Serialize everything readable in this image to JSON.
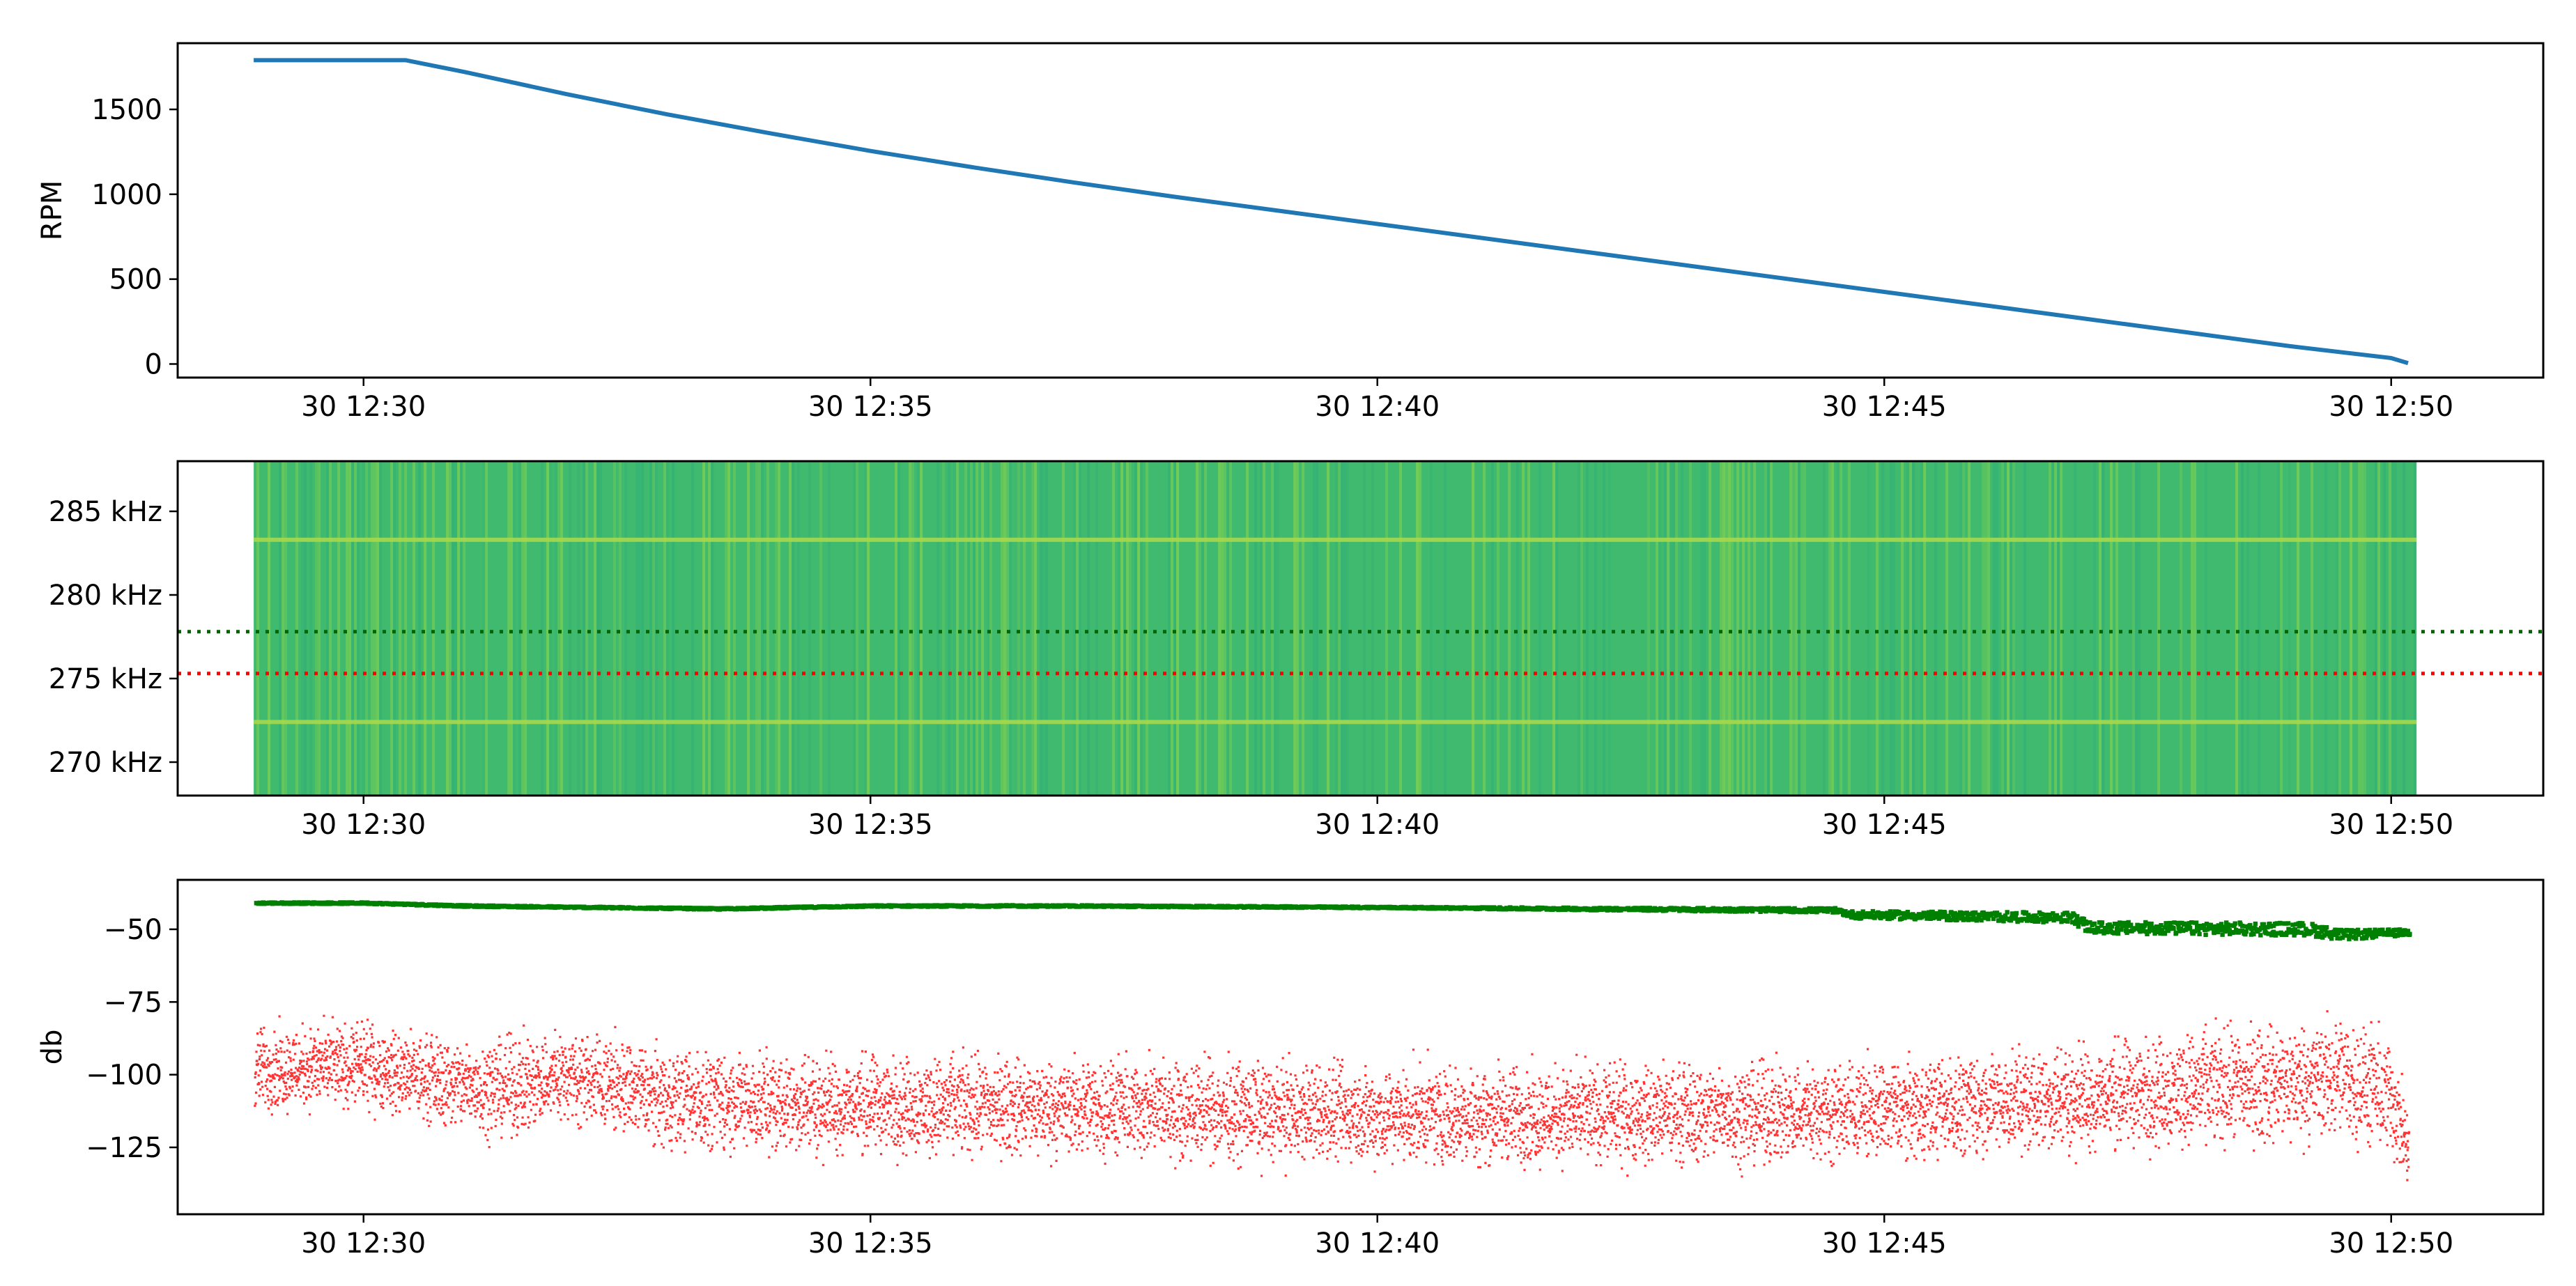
{
  "chart_data": [
    {
      "type": "line",
      "ylabel": "RPM",
      "xlim": [
        "12:28:10",
        "12:51:30"
      ],
      "ylim": [
        -80,
        1890
      ],
      "x_ticks": [
        "30 12:30",
        "30 12:35",
        "30 12:40",
        "30 12:45",
        "30 12:50"
      ],
      "y_ticks": [
        "0",
        "500",
        "1000",
        "1500"
      ],
      "grid": false,
      "series": [
        {
          "color": "#1f77b4",
          "x": [
            "12:28:55",
            "12:29:30",
            "12:30:00",
            "12:30:25",
            "12:31:00",
            "12:32:00",
            "12:33:00",
            "12:34:00",
            "12:35:00",
            "12:36:00",
            "12:37:00",
            "12:38:00",
            "12:39:00",
            "12:40:00",
            "12:41:00",
            "12:42:00",
            "12:43:00",
            "12:44:00",
            "12:45:00",
            "12:46:00",
            "12:47:00",
            "12:48:00",
            "12:49:00",
            "12:50:00",
            "12:50:10"
          ],
          "y": [
            1790,
            1790,
            1790,
            1790,
            1720,
            1590,
            1470,
            1360,
            1255,
            1160,
            1070,
            985,
            905,
            825,
            745,
            665,
            585,
            505,
            425,
            345,
            265,
            185,
            105,
            35,
            5
          ]
        }
      ]
    },
    {
      "type": "heatmap",
      "xlim": [
        "12:28:10",
        "12:51:30"
      ],
      "ylim": [
        268,
        288
      ],
      "x_ticks": [
        "30 12:30",
        "30 12:35",
        "30 12:40",
        "30 12:45",
        "30 12:50"
      ],
      "y_ticks": [
        "270 kHz",
        "275 kHz",
        "280 kHz",
        "285 kHz"
      ],
      "data_x_range": [
        "12:28:55",
        "12:50:15"
      ],
      "base_color": "#3fba6e",
      "reference_lines": [
        {
          "y": 277.8,
          "color": "#006400",
          "style": "dotted"
        },
        {
          "y": 275.3,
          "color": "#ff0000",
          "style": "dotted"
        }
      ],
      "bright_rows": [
        283.3,
        272.4
      ],
      "grid": false
    },
    {
      "type": "scatter",
      "ylabel": "db",
      "xlim": [
        "12:28:10",
        "12:51:30"
      ],
      "ylim": [
        -148,
        -33
      ],
      "x_ticks": [
        "30 12:30",
        "30 12:35",
        "30 12:40",
        "30 12:45",
        "30 12:50"
      ],
      "y_ticks": [
        "-125",
        "-100",
        "-75",
        "-50"
      ],
      "grid": false,
      "series": [
        {
          "color": "#008000",
          "x": [
            "12:28:55",
            "12:30:00",
            "12:31:00",
            "12:33:30",
            "12:35:00",
            "12:37:00",
            "12:40:00",
            "12:42:00",
            "12:44:30",
            "12:44:40",
            "12:46:50",
            "12:47:00",
            "12:49:10",
            "12:49:30",
            "12:50:10"
          ],
          "y": [
            -41,
            -41,
            -42,
            -43,
            -42,
            -42,
            -42.5,
            -43,
            -43.5,
            -45,
            -46,
            -49.5,
            -50,
            -52,
            -51
          ],
          "spread": [
            0.5,
            0.5,
            0.5,
            0.5,
            0.5,
            0.5,
            0.5,
            0.8,
            1.5,
            2.5,
            3.5,
            4,
            4.5,
            3.5,
            2
          ]
        },
        {
          "color": "#ff0000",
          "x": [
            "12:28:55",
            "12:30:00",
            "12:30:25",
            "12:31:00",
            "12:31:30",
            "12:32:00",
            "12:33:00",
            "12:34:00",
            "12:36:00",
            "12:38:00",
            "12:40:00",
            "12:42:00",
            "12:44:00",
            "12:45:00",
            "12:46:00",
            "12:47:00",
            "12:48:00",
            "12:49:00",
            "12:49:30",
            "12:50:00",
            "12:50:10"
          ],
          "y": [
            -98,
            -97,
            -100,
            -104,
            -104,
            -100,
            -108,
            -110,
            -111,
            -112,
            -114,
            -114,
            -113,
            -112,
            -110,
            -108,
            -105,
            -103,
            -101,
            -108,
            -128
          ],
          "spread": [
            11,
            11,
            11,
            12,
            13,
            12,
            13,
            13,
            13,
            13,
            13,
            13,
            13,
            13,
            13,
            14,
            15,
            16,
            16,
            16,
            10
          ]
        }
      ]
    }
  ]
}
